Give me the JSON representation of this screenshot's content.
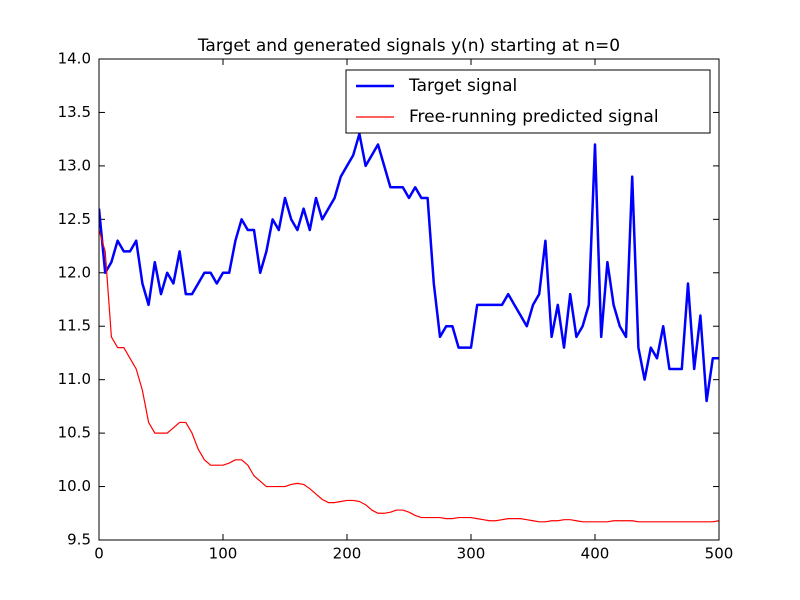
{
  "chart_data": {
    "type": "line",
    "title": "Target and generated signals y(n) starting at n=0",
    "x": [
      0,
      5,
      10,
      15,
      20,
      25,
      30,
      35,
      40,
      45,
      50,
      55,
      60,
      65,
      70,
      75,
      80,
      85,
      90,
      95,
      100,
      105,
      110,
      115,
      120,
      125,
      130,
      135,
      140,
      145,
      150,
      155,
      160,
      165,
      170,
      175,
      180,
      185,
      190,
      195,
      200,
      205,
      210,
      215,
      220,
      225,
      230,
      235,
      240,
      245,
      250,
      255,
      260,
      265,
      270,
      275,
      280,
      285,
      290,
      295,
      300,
      305,
      310,
      315,
      320,
      325,
      330,
      335,
      340,
      345,
      350,
      355,
      360,
      365,
      370,
      375,
      380,
      385,
      390,
      395,
      400,
      405,
      410,
      415,
      420,
      425,
      430,
      435,
      440,
      445,
      450,
      455,
      460,
      465,
      470,
      475,
      480,
      485,
      490,
      495,
      500
    ],
    "series": [
      {
        "name": "Target signal",
        "color": "#0000ff",
        "width": 2.5,
        "values": [
          12.6,
          12.0,
          12.1,
          12.3,
          12.2,
          12.2,
          12.3,
          11.9,
          11.7,
          12.1,
          11.8,
          12.0,
          11.9,
          12.2,
          11.8,
          11.8,
          11.9,
          12.0,
          12.0,
          11.9,
          12.0,
          12.0,
          12.3,
          12.5,
          12.4,
          12.4,
          12.0,
          12.2,
          12.5,
          12.4,
          12.7,
          12.5,
          12.4,
          12.6,
          12.4,
          12.7,
          12.5,
          12.6,
          12.7,
          12.9,
          13.0,
          13.1,
          13.3,
          13.0,
          13.1,
          13.2,
          13.0,
          12.8,
          12.8,
          12.8,
          12.7,
          12.8,
          12.7,
          12.7,
          11.9,
          11.4,
          11.5,
          11.5,
          11.3,
          11.3,
          11.3,
          11.7,
          11.7,
          11.7,
          11.7,
          11.7,
          11.8,
          11.7,
          11.6,
          11.5,
          11.7,
          11.8,
          12.3,
          11.4,
          11.7,
          11.3,
          11.8,
          11.4,
          11.5,
          11.7,
          13.2,
          11.4,
          12.1,
          11.7,
          11.5,
          11.4,
          12.9,
          11.3,
          11.0,
          11.3,
          11.2,
          11.5,
          11.1,
          11.1,
          11.1,
          11.9,
          11.1,
          11.6,
          10.8,
          11.2,
          11.2
        ]
      },
      {
        "name": "Free-running predicted signal",
        "color": "#ff0000",
        "width": 1.2,
        "values": [
          12.4,
          12.2,
          11.4,
          11.3,
          11.3,
          11.2,
          11.1,
          10.9,
          10.6,
          10.5,
          10.5,
          10.5,
          10.55,
          10.6,
          10.6,
          10.5,
          10.35,
          10.25,
          10.2,
          10.2,
          10.2,
          10.22,
          10.25,
          10.25,
          10.2,
          10.1,
          10.05,
          10.0,
          10.0,
          10.0,
          10.0,
          10.02,
          10.03,
          10.02,
          9.98,
          9.93,
          9.88,
          9.85,
          9.85,
          9.86,
          9.87,
          9.87,
          9.86,
          9.83,
          9.78,
          9.75,
          9.75,
          9.76,
          9.78,
          9.78,
          9.76,
          9.73,
          9.71,
          9.71,
          9.71,
          9.71,
          9.7,
          9.7,
          9.71,
          9.71,
          9.71,
          9.7,
          9.69,
          9.68,
          9.68,
          9.69,
          9.7,
          9.7,
          9.7,
          9.69,
          9.68,
          9.67,
          9.67,
          9.68,
          9.68,
          9.69,
          9.69,
          9.68,
          9.67,
          9.67,
          9.67,
          9.67,
          9.67,
          9.68,
          9.68,
          9.68,
          9.68,
          9.67,
          9.67,
          9.67,
          9.67,
          9.67,
          9.67,
          9.67,
          9.67,
          9.67,
          9.67,
          9.67,
          9.67,
          9.67,
          9.68
        ]
      }
    ],
    "xlim": [
      0,
      500
    ],
    "xticks": [
      0,
      100,
      200,
      300,
      400,
      500
    ],
    "ylim": [
      9.5,
      14
    ],
    "yticks": [
      9.5,
      {
        "value": 10,
        "label": "10.0"
      },
      10.5,
      {
        "value": 11,
        "label": "11.0"
      },
      11.5,
      {
        "value": 12,
        "label": "12.0"
      },
      12.5,
      {
        "value": 13,
        "label": "13.0"
      },
      13.5,
      {
        "value": 14,
        "label": "14.0"
      }
    ],
    "legend": "upper right",
    "grid": false
  }
}
